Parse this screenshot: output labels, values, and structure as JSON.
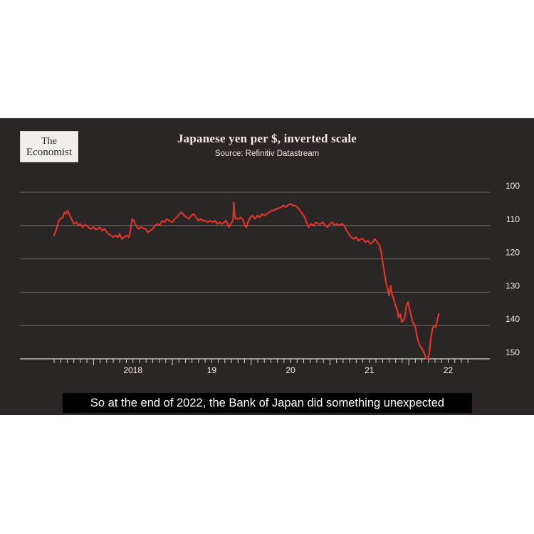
{
  "logo": {
    "line1": "The",
    "line2": "Economist"
  },
  "chart_data": {
    "type": "line",
    "title": "Japanese yen per $, inverted scale",
    "subtitle": "Source: Refinitiv Datastream",
    "y_inverted": true,
    "ylim": [
      150,
      100
    ],
    "yticks": [
      100,
      110,
      120,
      130,
      140,
      150
    ],
    "xlim": [
      2017.5,
      2022.83
    ],
    "xticks": [
      {
        "label": "2018",
        "x": 2018
      },
      {
        "label": "19",
        "x": 2019
      },
      {
        "label": "20",
        "x": 2020
      },
      {
        "label": "21",
        "x": 2021
      },
      {
        "label": "22",
        "x": 2022
      }
    ],
    "grid": true,
    "line_color": "#e0342b",
    "series": [
      {
        "values": [
          [
            2017.5,
            113.0
          ],
          [
            2017.53,
            111.0
          ],
          [
            2017.56,
            108.5
          ],
          [
            2017.58,
            108.0
          ],
          [
            2017.61,
            107.5
          ],
          [
            2017.63,
            106.0
          ],
          [
            2017.65,
            106.5
          ],
          [
            2017.67,
            105.5
          ],
          [
            2017.7,
            107.0
          ],
          [
            2017.72,
            108.0
          ],
          [
            2017.75,
            109.5
          ],
          [
            2017.78,
            109.0
          ],
          [
            2017.81,
            110.0
          ],
          [
            2017.83,
            109.5
          ],
          [
            2017.86,
            110.5
          ],
          [
            2017.89,
            109.8
          ],
          [
            2017.92,
            110.0
          ],
          [
            2017.94,
            110.7
          ],
          [
            2017.97,
            111.0
          ],
          [
            2018.0,
            110.5
          ],
          [
            2018.03,
            111.2
          ],
          [
            2018.06,
            111.0
          ],
          [
            2018.08,
            110.5
          ],
          [
            2018.11,
            111.5
          ],
          [
            2018.14,
            111.0
          ],
          [
            2018.17,
            112.0
          ],
          [
            2018.19,
            112.5
          ],
          [
            2018.22,
            113.0
          ],
          [
            2018.25,
            113.5
          ],
          [
            2018.28,
            113.0
          ],
          [
            2018.31,
            113.5
          ],
          [
            2018.33,
            112.5
          ],
          [
            2018.36,
            114.0
          ],
          [
            2018.39,
            113.5
          ],
          [
            2018.42,
            113.0
          ],
          [
            2018.45,
            113.5
          ],
          [
            2018.47,
            111.0
          ],
          [
            2018.49,
            108.0
          ],
          [
            2018.51,
            108.5
          ],
          [
            2018.54,
            110.0
          ],
          [
            2018.57,
            111.0
          ],
          [
            2018.6,
            110.5
          ],
          [
            2018.63,
            110.8
          ],
          [
            2018.66,
            111.0
          ],
          [
            2018.69,
            112.0
          ],
          [
            2018.72,
            111.5
          ],
          [
            2018.75,
            111.0
          ],
          [
            2018.78,
            110.0
          ],
          [
            2018.81,
            109.5
          ],
          [
            2018.84,
            110.0
          ],
          [
            2018.87,
            108.5
          ],
          [
            2018.9,
            109.0
          ],
          [
            2018.93,
            108.0
          ],
          [
            2018.96,
            108.5
          ],
          [
            2019.0,
            109.0
          ],
          [
            2019.03,
            108.0
          ],
          [
            2019.06,
            107.5
          ],
          [
            2019.09,
            106.5
          ],
          [
            2019.12,
            106.0
          ],
          [
            2019.15,
            107.0
          ],
          [
            2019.18,
            107.5
          ],
          [
            2019.21,
            108.0
          ],
          [
            2019.24,
            107.0
          ],
          [
            2019.27,
            106.5
          ],
          [
            2019.3,
            107.5
          ],
          [
            2019.33,
            108.5
          ],
          [
            2019.36,
            108.0
          ],
          [
            2019.39,
            108.5
          ],
          [
            2019.42,
            108.5
          ],
          [
            2019.45,
            109.0
          ],
          [
            2019.48,
            108.5
          ],
          [
            2019.51,
            109.0
          ],
          [
            2019.54,
            108.5
          ],
          [
            2019.57,
            109.5
          ],
          [
            2019.6,
            109.0
          ],
          [
            2019.63,
            109.5
          ],
          [
            2019.66,
            109.0
          ],
          [
            2019.68,
            108.5
          ],
          [
            2019.7,
            109.5
          ],
          [
            2019.72,
            110.5
          ],
          [
            2019.74,
            109.5
          ],
          [
            2019.77,
            108.5
          ],
          [
            2019.78,
            103.0
          ],
          [
            2019.79,
            107.0
          ],
          [
            2019.81,
            108.0
          ],
          [
            2019.84,
            108.0
          ],
          [
            2019.87,
            107.5
          ],
          [
            2019.9,
            108.5
          ],
          [
            2019.92,
            110.0
          ],
          [
            2019.94,
            110.5
          ],
          [
            2019.96,
            109.0
          ],
          [
            2019.99,
            107.5
          ],
          [
            2020.02,
            107.0
          ],
          [
            2020.05,
            108.0
          ],
          [
            2020.08,
            107.0
          ],
          [
            2020.11,
            107.5
          ],
          [
            2020.14,
            106.5
          ],
          [
            2020.17,
            107.0
          ],
          [
            2020.2,
            106.5
          ],
          [
            2020.23,
            106.0
          ],
          [
            2020.26,
            105.5
          ],
          [
            2020.29,
            105.5
          ],
          [
            2020.32,
            105.0
          ],
          [
            2020.35,
            104.8
          ],
          [
            2020.38,
            104.5
          ],
          [
            2020.41,
            104.0
          ],
          [
            2020.44,
            104.5
          ],
          [
            2020.47,
            103.8
          ],
          [
            2020.5,
            103.5
          ],
          [
            2020.53,
            104.0
          ],
          [
            2020.56,
            104.0
          ],
          [
            2020.59,
            104.5
          ],
          [
            2020.62,
            105.5
          ],
          [
            2020.65,
            106.5
          ],
          [
            2020.68,
            107.5
          ],
          [
            2020.7,
            109.0
          ],
          [
            2020.73,
            110.5
          ],
          [
            2020.76,
            109.5
          ],
          [
            2020.79,
            110.0
          ],
          [
            2020.82,
            109.0
          ],
          [
            2020.85,
            109.5
          ],
          [
            2020.88,
            109.5
          ],
          [
            2020.91,
            109.0
          ],
          [
            2020.94,
            110.0
          ],
          [
            2020.97,
            110.5
          ],
          [
            2021.0,
            109.5
          ],
          [
            2021.03,
            109.0
          ],
          [
            2021.06,
            110.0
          ],
          [
            2021.09,
            109.5
          ],
          [
            2021.12,
            110.0
          ],
          [
            2021.15,
            109.5
          ],
          [
            2021.18,
            110.0
          ],
          [
            2021.21,
            111.5
          ],
          [
            2021.24,
            112.5
          ],
          [
            2021.27,
            113.5
          ],
          [
            2021.3,
            114.0
          ],
          [
            2021.33,
            113.5
          ],
          [
            2021.36,
            114.5
          ],
          [
            2021.39,
            114.0
          ],
          [
            2021.42,
            114.0
          ],
          [
            2021.45,
            115.0
          ],
          [
            2021.48,
            114.5
          ],
          [
            2021.51,
            115.5
          ],
          [
            2021.54,
            115.0
          ],
          [
            2021.57,
            114.0
          ],
          [
            2021.6,
            115.0
          ],
          [
            2021.63,
            116.0
          ],
          [
            2021.65,
            118.0
          ],
          [
            2021.67,
            121.0
          ],
          [
            2021.69,
            124.0
          ],
          [
            2021.71,
            127.0
          ],
          [
            2021.73,
            129.0
          ],
          [
            2021.75,
            131.0
          ],
          [
            2021.77,
            128.0
          ],
          [
            2021.79,
            131.0
          ],
          [
            2021.81,
            132.0
          ],
          [
            2021.83,
            134.0
          ],
          [
            2021.85,
            135.0
          ],
          [
            2021.87,
            137.5
          ],
          [
            2021.89,
            136.5
          ],
          [
            2021.91,
            139.0
          ],
          [
            2021.93,
            138.5
          ],
          [
            2021.95,
            137.5
          ],
          [
            2021.97,
            134.0
          ],
          [
            2021.99,
            133.0
          ],
          [
            2022.02,
            136.0
          ],
          [
            2022.05,
            139.0
          ],
          [
            2022.08,
            140.0
          ],
          [
            2022.11,
            144.0
          ],
          [
            2022.14,
            146.0
          ],
          [
            2022.17,
            147.0
          ],
          [
            2022.2,
            148.5
          ],
          [
            2022.22,
            150.0
          ],
          [
            2022.24,
            150.0
          ],
          [
            2022.26,
            148.5
          ],
          [
            2022.28,
            144.0
          ],
          [
            2022.3,
            141.0
          ],
          [
            2022.32,
            140.0
          ],
          [
            2022.34,
            140.5
          ],
          [
            2022.36,
            138.5
          ],
          [
            2022.38,
            136.5
          ]
        ]
      }
    ]
  },
  "caption": "So at the end of 2022, the Bank of Japan did something unexpected"
}
